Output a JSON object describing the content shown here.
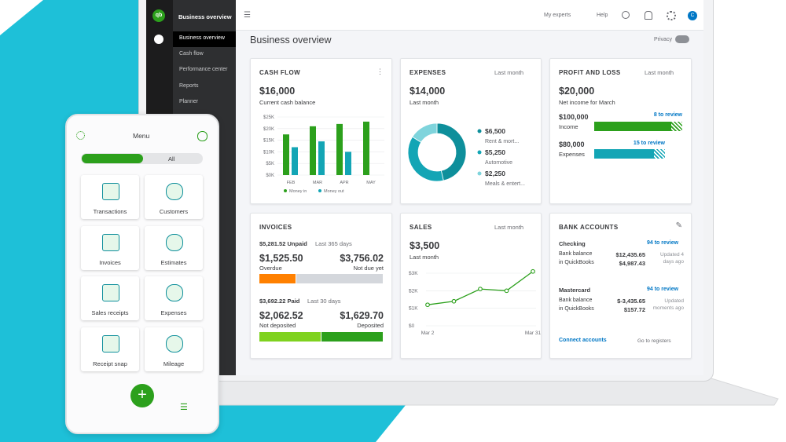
{
  "sidebar": {
    "logo": "qb",
    "app_title": "Business overview",
    "items": [
      "Business overview",
      "Cash flow",
      "Performance center",
      "Reports",
      "Planner"
    ]
  },
  "topbar": {
    "links": [
      "My experts",
      "Help"
    ],
    "avatar": "C"
  },
  "page": {
    "title": "Business overview",
    "privacy": "Privacy"
  },
  "cash_flow": {
    "title": "CASH FLOW",
    "amount": "$16,000",
    "caption": "Current cash balance",
    "chart": {
      "type": "bar",
      "categories": [
        "FEB",
        "MAR",
        "APR",
        "MAY"
      ],
      "series": [
        {
          "name": "Money in",
          "color": "#2ca01c",
          "values": [
            17500,
            21000,
            22000,
            23000
          ]
        },
        {
          "name": "Money out",
          "color": "#13a5b5",
          "values": [
            12000,
            14500,
            10000,
            null
          ]
        }
      ],
      "ylim": [
        0,
        25000
      ],
      "yticks": [
        {
          "value": 0,
          "label": "$0K"
        },
        {
          "value": 5000,
          "label": "$5K"
        },
        {
          "value": 10000,
          "label": "$10K"
        },
        {
          "value": 15000,
          "label": "$15K"
        },
        {
          "value": 20000,
          "label": "$20K"
        },
        {
          "value": 25000,
          "label": "$25K"
        }
      ],
      "grid": true
    }
  },
  "expenses": {
    "title": "EXPENSES",
    "period": "Last month",
    "amount": "$14,000",
    "caption": "Last month",
    "chart": {
      "type": "pie",
      "categories": [
        "Rent & mort...",
        "Automotive",
        "Meals & entert..."
      ],
      "values": [
        6500,
        5250,
        2250
      ],
      "value_labels": [
        "$6,500",
        "$5,250",
        "$2,250"
      ],
      "colors": [
        "#0e8f9b",
        "#13a5b5",
        "#7fd4dc"
      ]
    }
  },
  "profit_loss": {
    "title": "PROFIT AND LOSS",
    "period": "Last month",
    "amount": "$20,000",
    "caption": "Net income for March",
    "income": {
      "amount": "$100,000",
      "label": "Income",
      "review": "8 to review"
    },
    "expenses": {
      "amount": "$80,000",
      "label": "Expenses",
      "review": "15 to review"
    }
  },
  "invoices": {
    "title": "INVOICES",
    "unpaid": "$5,281.52 Unpaid",
    "unpaid_period": "Last 365 days",
    "overdue_amount": "$1,525.50",
    "overdue": "Overdue",
    "not_due_amount": "$3,756.02",
    "not_due": "Not due yet",
    "paid": "$3,692.22 Paid",
    "paid_period": "Last 30 days",
    "not_deposited_amount": "$2,062.52",
    "not_deposited": "Not deposited",
    "deposited_amount": "$1,629.70",
    "deposited": "Deposited"
  },
  "sales": {
    "title": "SALES",
    "period": "Last month",
    "amount": "$3,500",
    "caption": "Last month",
    "chart": {
      "type": "line",
      "categories": [
        "Mar 2",
        null,
        null,
        null,
        "Mar 31"
      ],
      "values": [
        1200,
        1400,
        2100,
        2000,
        3100
      ],
      "color": "#2ca01c",
      "ylim": [
        0,
        3000
      ],
      "yticks": [
        {
          "value": 0,
          "label": "$0"
        },
        {
          "value": 1000,
          "label": "$1K"
        },
        {
          "value": 2000,
          "label": "$2K"
        },
        {
          "value": 3000,
          "label": "$3K"
        }
      ],
      "grid": true
    }
  },
  "bank": {
    "title": "BANK ACCOUNTS",
    "accounts": [
      {
        "name": "Checking",
        "review": "94 to review",
        "bank_label": "Bank balance",
        "bank": "$12,435.65",
        "qb_label": "in QuickBooks",
        "qb": "$4,987.43",
        "updated": "Updated 4 days ago"
      },
      {
        "name": "Mastercard",
        "review": "94 to review",
        "bank_label": "Bank balance",
        "bank": "$-3,435.65",
        "qb_label": "in QuickBooks",
        "qb": "$157.72",
        "updated": "Updated moments ago"
      }
    ],
    "connect": "Connect accounts",
    "goto": "Go to registers"
  },
  "phone": {
    "title": "Menu",
    "tab": "All",
    "tiles": [
      "Transactions",
      "Customers",
      "Invoices",
      "Estimates",
      "Sales receipts",
      "Expenses",
      "Receipt snap",
      "Mileage"
    ]
  }
}
